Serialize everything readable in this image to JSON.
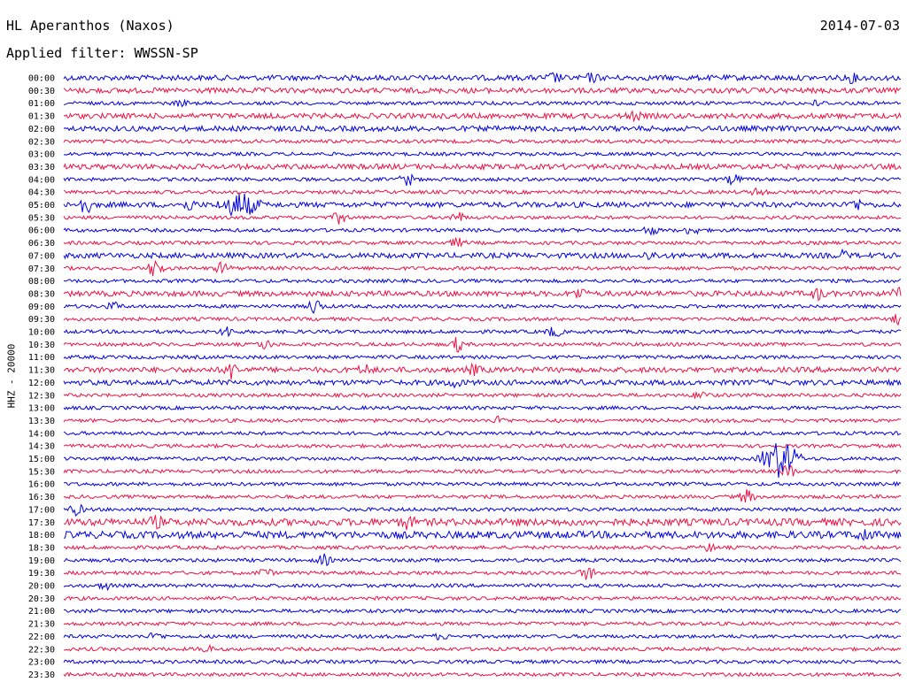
{
  "header": {
    "station": "HL Aperanthos (Naxos)",
    "date": "2014-07-03",
    "filter_label": "Applied filter: WWSSN-SP"
  },
  "chart_data": {
    "type": "line",
    "title": "HL Aperanthos (Naxos)",
    "subtitle": "Applied filter: WWSSN-SP",
    "date": "2014-07-03",
    "ylabel": "HHZ - 20000",
    "xlabel": "",
    "grid": false,
    "colors": [
      "#0000e0",
      "#ee1144"
    ],
    "rows": [
      {
        "label": "00:00",
        "amp": 3,
        "events": [
          {
            "x": 0.585,
            "a": 5
          },
          {
            "x": 0.63,
            "a": 4
          },
          {
            "x": 0.94,
            "a": 4
          }
        ]
      },
      {
        "label": "00:30",
        "amp": 3,
        "events": []
      },
      {
        "label": "01:00",
        "amp": 2,
        "events": [
          {
            "x": 0.14,
            "a": 3
          },
          {
            "x": 0.9,
            "a": 3
          }
        ]
      },
      {
        "label": "01:30",
        "amp": 3,
        "events": [
          {
            "x": 0.68,
            "a": 4
          }
        ]
      },
      {
        "label": "02:00",
        "amp": 3,
        "events": []
      },
      {
        "label": "02:30",
        "amp": 2,
        "events": []
      },
      {
        "label": "03:00",
        "amp": 2,
        "events": []
      },
      {
        "label": "03:30",
        "amp": 3,
        "events": []
      },
      {
        "label": "04:00",
        "amp": 2,
        "events": [
          {
            "x": 0.41,
            "a": 7
          },
          {
            "x": 0.8,
            "a": 6
          }
        ]
      },
      {
        "label": "04:30",
        "amp": 2,
        "events": [
          {
            "x": 0.83,
            "a": 5
          }
        ]
      },
      {
        "label": "05:00",
        "amp": 3,
        "events": [
          {
            "x": 0.025,
            "a": 10
          },
          {
            "x": 0.15,
            "a": 5
          },
          {
            "x": 0.21,
            "a": 14
          },
          {
            "x": 0.945,
            "a": 6
          }
        ]
      },
      {
        "label": "05:30",
        "amp": 2,
        "events": [
          {
            "x": 0.33,
            "a": 7
          },
          {
            "x": 0.47,
            "a": 6
          }
        ]
      },
      {
        "label": "06:00",
        "amp": 2,
        "events": [
          {
            "x": 0.7,
            "a": 5
          },
          {
            "x": 0.75,
            "a": 5
          }
        ]
      },
      {
        "label": "06:30",
        "amp": 2,
        "events": [
          {
            "x": 0.47,
            "a": 5
          }
        ]
      },
      {
        "label": "07:00",
        "amp": 3,
        "events": [
          {
            "x": 0.7,
            "a": 4
          },
          {
            "x": 0.93,
            "a": 4
          }
        ]
      },
      {
        "label": "07:30",
        "amp": 2,
        "events": [
          {
            "x": 0.11,
            "a": 12
          },
          {
            "x": 0.19,
            "a": 7
          }
        ]
      },
      {
        "label": "08:00",
        "amp": 2,
        "events": []
      },
      {
        "label": "08:30",
        "amp": 3,
        "events": [
          {
            "x": 0.615,
            "a": 6
          },
          {
            "x": 0.9,
            "a": 6
          },
          {
            "x": 0.998,
            "a": 8
          }
        ]
      },
      {
        "label": "09:00",
        "amp": 2,
        "events": [
          {
            "x": 0.06,
            "a": 4
          },
          {
            "x": 0.3,
            "a": 9
          }
        ]
      },
      {
        "label": "09:30",
        "amp": 2,
        "events": [
          {
            "x": 0.998,
            "a": 7
          }
        ]
      },
      {
        "label": "10:00",
        "amp": 2,
        "events": [
          {
            "x": 0.195,
            "a": 6
          },
          {
            "x": 0.585,
            "a": 6
          }
        ]
      },
      {
        "label": "10:30",
        "amp": 2,
        "events": [
          {
            "x": 0.24,
            "a": 5
          },
          {
            "x": 0.47,
            "a": 8
          }
        ]
      },
      {
        "label": "11:00",
        "amp": 2,
        "events": []
      },
      {
        "label": "11:30",
        "amp": 3,
        "events": [
          {
            "x": 0.2,
            "a": 9
          },
          {
            "x": 0.36,
            "a": 5
          },
          {
            "x": 0.49,
            "a": 5
          }
        ]
      },
      {
        "label": "12:00",
        "amp": 3,
        "events": [
          {
            "x": 0.465,
            "a": 5
          }
        ]
      },
      {
        "label": "12:30",
        "amp": 2,
        "events": [
          {
            "x": 0.76,
            "a": 5
          }
        ]
      },
      {
        "label": "13:00",
        "amp": 2,
        "events": []
      },
      {
        "label": "13:30",
        "amp": 2,
        "events": [
          {
            "x": 0.52,
            "a": 4
          }
        ]
      },
      {
        "label": "14:00",
        "amp": 2,
        "events": []
      },
      {
        "label": "14:30",
        "amp": 2,
        "events": []
      },
      {
        "label": "15:00",
        "amp": 2,
        "events": [
          {
            "x": 0.855,
            "a": 22
          }
        ]
      },
      {
        "label": "15:30",
        "amp": 2,
        "events": [
          {
            "x": 0.865,
            "a": 8
          }
        ]
      },
      {
        "label": "16:00",
        "amp": 2,
        "events": []
      },
      {
        "label": "16:30",
        "amp": 2,
        "events": [
          {
            "x": 0.815,
            "a": 8
          }
        ]
      },
      {
        "label": "17:00",
        "amp": 2,
        "events": [
          {
            "x": 0.015,
            "a": 6
          }
        ]
      },
      {
        "label": "17:30",
        "amp": 4,
        "events": [
          {
            "x": 0.11,
            "a": 5
          },
          {
            "x": 0.41,
            "a": 6
          }
        ]
      },
      {
        "label": "18:00",
        "amp": 4,
        "events": [
          {
            "x": 0.955,
            "a": 6
          }
        ]
      },
      {
        "label": "18:30",
        "amp": 2,
        "events": [
          {
            "x": 0.77,
            "a": 4
          }
        ]
      },
      {
        "label": "19:00",
        "amp": 2,
        "events": [
          {
            "x": 0.31,
            "a": 6
          }
        ]
      },
      {
        "label": "19:30",
        "amp": 2,
        "events": [
          {
            "x": 0.24,
            "a": 5
          },
          {
            "x": 0.625,
            "a": 8
          }
        ]
      },
      {
        "label": "20:00",
        "amp": 2,
        "events": [
          {
            "x": 0.05,
            "a": 4
          }
        ]
      },
      {
        "label": "20:30",
        "amp": 2,
        "events": []
      },
      {
        "label": "21:00",
        "amp": 2,
        "events": []
      },
      {
        "label": "21:30",
        "amp": 2,
        "events": []
      },
      {
        "label": "22:00",
        "amp": 2,
        "events": [
          {
            "x": 0.11,
            "a": 4
          },
          {
            "x": 0.45,
            "a": 3
          }
        ]
      },
      {
        "label": "22:30",
        "amp": 2,
        "events": [
          {
            "x": 0.17,
            "a": 4
          }
        ]
      },
      {
        "label": "23:00",
        "amp": 2,
        "events": []
      },
      {
        "label": "23:30",
        "amp": 2,
        "events": []
      }
    ]
  }
}
